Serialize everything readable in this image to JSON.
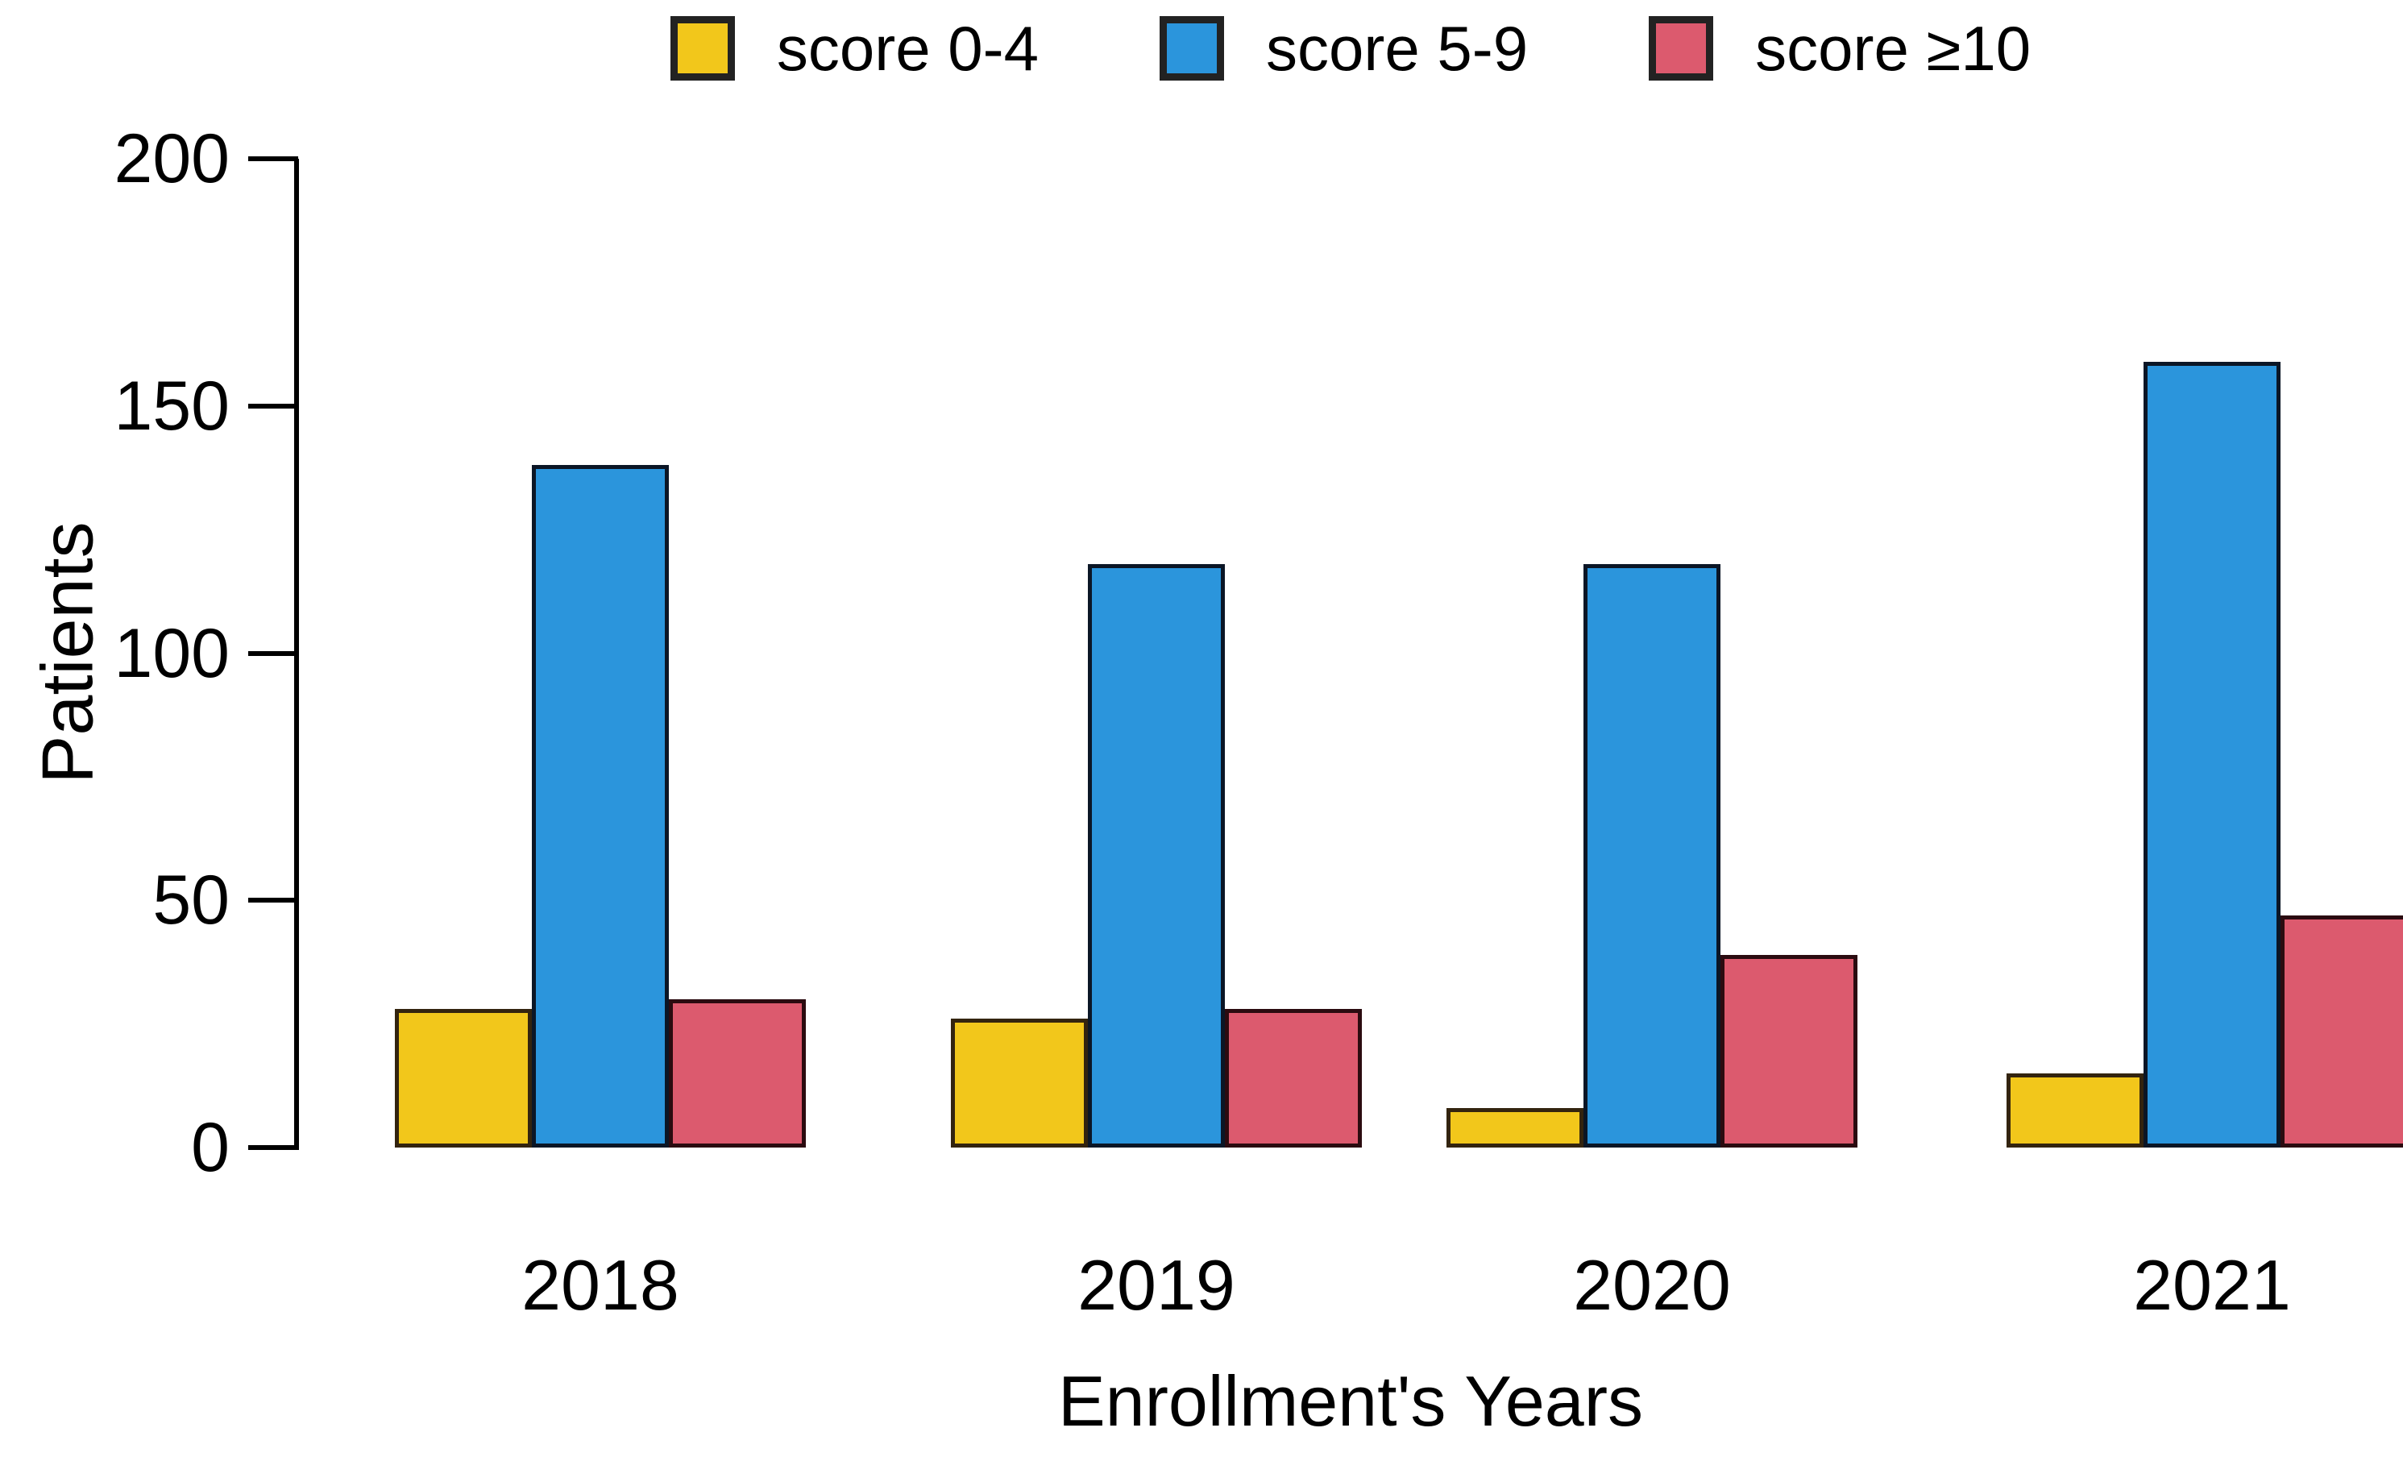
{
  "chart_data": {
    "type": "bar",
    "title": "",
    "categories": [
      "2018",
      "2019",
      "2020",
      "2021"
    ],
    "series": [
      {
        "name": "score 0-4",
        "color": "#F2C71B",
        "border_color": "#33240F",
        "values": [
          28,
          26,
          8,
          15
        ]
      },
      {
        "name": "score 5-9",
        "color": "#2B95DC",
        "border_color": "#0B1626",
        "values": [
          138,
          118,
          118,
          159
        ]
      },
      {
        "name": "score ≥10",
        "color": "#DC5A6E",
        "border_color": "#2B0B10",
        "values": [
          30,
          28,
          39,
          47
        ]
      }
    ],
    "xlabel": "Enrollment's Years",
    "ylabel": "Patients",
    "ylim": [
      0,
      200
    ],
    "yticks": [
      0,
      50,
      100,
      150,
      200
    ],
    "grid": false,
    "legend_position": "top",
    "axis_color": "#000000",
    "background_color": "#FFFFFF"
  }
}
